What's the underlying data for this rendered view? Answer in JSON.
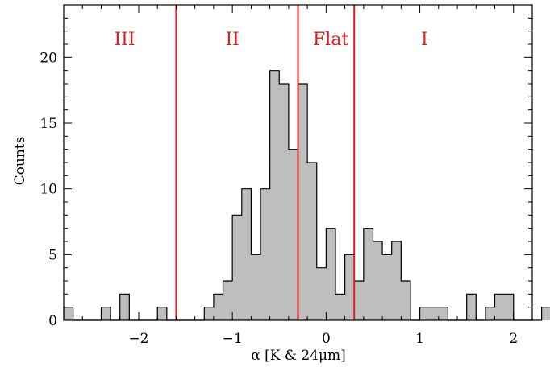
{
  "chart_data": {
    "type": "histogram",
    "xlabel": "α [K & 24μm]",
    "ylabel": "Counts",
    "xlim": [
      -2.8,
      2.2
    ],
    "ylim": [
      0,
      24
    ],
    "bin_width": 0.1,
    "bin_start": -2.8,
    "counts": [
      1,
      0,
      0,
      0,
      1,
      0,
      2,
      0,
      0,
      0,
      1,
      0,
      0,
      0,
      0,
      1,
      2,
      3,
      8,
      10,
      5,
      10,
      19,
      18,
      13,
      18,
      12,
      4,
      7,
      2,
      5,
      3,
      7,
      6,
      5,
      6,
      3,
      0,
      1,
      1,
      1,
      0,
      0,
      2,
      0,
      1,
      2,
      2,
      0,
      0,
      0,
      1
    ],
    "xticks": [
      -2,
      -1,
      0,
      1,
      2
    ],
    "yticks": [
      0,
      5,
      10,
      15,
      20
    ],
    "boundaries": [
      -1.6,
      -0.3,
      0.3
    ],
    "regions": [
      {
        "label": "III",
        "x": -2.15
      },
      {
        "label": "II",
        "x": -1.0
      },
      {
        "label": "Flat",
        "x": 0.05
      },
      {
        "label": "I",
        "x": 1.05
      }
    ],
    "colors": {
      "fill": "#bebebe",
      "edge": "#000000",
      "boundary": "#e41a1c"
    }
  }
}
